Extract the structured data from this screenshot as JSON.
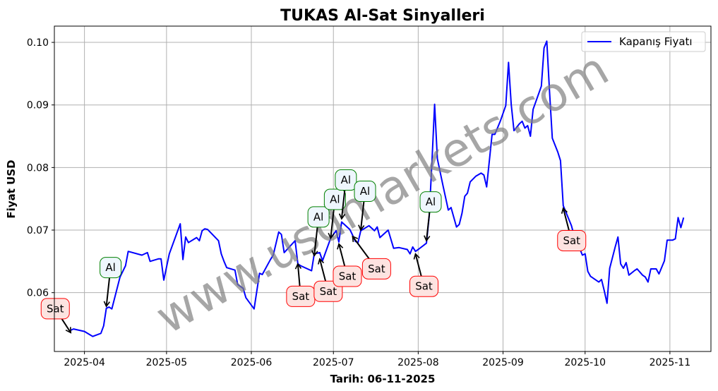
{
  "chart_data": {
    "type": "line",
    "title": "TUKAS Al-Sat Sinyalleri",
    "xlabel": "Tarih: 06-11-2025",
    "ylabel": "Fiyat USD",
    "xlim": [
      "2025-03-21",
      "2025-11-16"
    ],
    "ylim": [
      0.0506,
      0.1026
    ],
    "x_ticks": [
      "2025-04",
      "2025-05",
      "2025-06",
      "2025-07",
      "2025-08",
      "2025-09",
      "2025-10",
      "2025-11"
    ],
    "x_tick_dates": [
      "2025-04-01",
      "2025-05-01",
      "2025-06-01",
      "2025-07-01",
      "2025-08-01",
      "2025-09-01",
      "2025-10-01",
      "2025-11-01"
    ],
    "y_ticks": [
      "0.06",
      "0.07",
      "0.08",
      "0.09",
      "0.10"
    ],
    "grid": true,
    "legend_position": "top-right",
    "watermark": "www.usdmarkets.com",
    "colors": {
      "line": "#0000ff",
      "buy_border": "#008000",
      "buy_fill": "#eef6fd",
      "sell_border": "#ff0000",
      "sell_fill": "#fde3e0",
      "grid": "#b0b0b0",
      "watermark": "#808080"
    },
    "series": [
      {
        "name": "Kapanış Fiyatı",
        "x": [
          "2025-03-27",
          "2025-03-28",
          "2025-04-01",
          "2025-04-04",
          "2025-04-07",
          "2025-04-08",
          "2025-04-09",
          "2025-04-10",
          "2025-04-11",
          "2025-04-14",
          "2025-04-16",
          "2025-04-17",
          "2025-04-22",
          "2025-04-24",
          "2025-04-25",
          "2025-04-28",
          "2025-04-29",
          "2025-04-30",
          "2025-05-02",
          "2025-05-06",
          "2025-05-07",
          "2025-05-08",
          "2025-05-09",
          "2025-05-12",
          "2025-05-13",
          "2025-05-14",
          "2025-05-15",
          "2025-05-16",
          "2025-05-20",
          "2025-05-21",
          "2025-05-22",
          "2025-05-23",
          "2025-05-26",
          "2025-05-27",
          "2025-05-29",
          "2025-05-30",
          "2025-06-02",
          "2025-06-04",
          "2025-06-05",
          "2025-06-08",
          "2025-06-09",
          "2025-06-11",
          "2025-06-12",
          "2025-06-13",
          "2025-06-17",
          "2025-06-18",
          "2025-06-19",
          "2025-06-23",
          "2025-06-24",
          "2025-06-26",
          "2025-06-27",
          "2025-06-30",
          "2025-07-02",
          "2025-07-03",
          "2025-07-04",
          "2025-07-07",
          "2025-07-08",
          "2025-07-09",
          "2025-07-10",
          "2025-07-11",
          "2025-07-14",
          "2025-07-16",
          "2025-07-17",
          "2025-07-18",
          "2025-07-21",
          "2025-07-23",
          "2025-07-25",
          "2025-07-28",
          "2025-07-29",
          "2025-07-30",
          "2025-07-31",
          "2025-08-01",
          "2025-08-04",
          "2025-08-05",
          "2025-08-06",
          "2025-08-07",
          "2025-08-08",
          "2025-08-10",
          "2025-08-12",
          "2025-08-13",
          "2025-08-15",
          "2025-08-16",
          "2025-08-17",
          "2025-08-18",
          "2025-08-19",
          "2025-08-20",
          "2025-08-22",
          "2025-08-24",
          "2025-08-25",
          "2025-08-26",
          "2025-08-28",
          "2025-08-29",
          "2025-08-31",
          "2025-09-02",
          "2025-09-03",
          "2025-09-04",
          "2025-09-05",
          "2025-09-07",
          "2025-09-08",
          "2025-09-09",
          "2025-09-10",
          "2025-09-11",
          "2025-09-12",
          "2025-09-15",
          "2025-09-16",
          "2025-09-17",
          "2025-09-18",
          "2025-09-19",
          "2025-09-21",
          "2025-09-22",
          "2025-09-23",
          "2025-09-25",
          "2025-09-26",
          "2025-09-28",
          "2025-09-29",
          "2025-09-30",
          "2025-10-01",
          "2025-10-02",
          "2025-10-03",
          "2025-10-06",
          "2025-10-07",
          "2025-10-08",
          "2025-10-09",
          "2025-10-10",
          "2025-10-12",
          "2025-10-13",
          "2025-10-14",
          "2025-10-15",
          "2025-10-16",
          "2025-10-17",
          "2025-10-19",
          "2025-10-20",
          "2025-10-22",
          "2025-10-23",
          "2025-10-24",
          "2025-10-25",
          "2025-10-26",
          "2025-10-27",
          "2025-10-28",
          "2025-10-30",
          "2025-10-31",
          "2025-11-02",
          "2025-11-03",
          "2025-11-04",
          "2025-11-05",
          "2025-11-06"
        ],
        "values": [
          0.054,
          0.0542,
          0.0538,
          0.053,
          0.0535,
          0.0547,
          0.0575,
          0.0577,
          0.0574,
          0.0625,
          0.0643,
          0.0666,
          0.066,
          0.0664,
          0.065,
          0.0654,
          0.0654,
          0.062,
          0.0662,
          0.071,
          0.0653,
          0.0689,
          0.068,
          0.0688,
          0.0683,
          0.0699,
          0.0702,
          0.0701,
          0.0683,
          0.0662,
          0.065,
          0.064,
          0.0636,
          0.0613,
          0.0607,
          0.0592,
          0.0574,
          0.0631,
          0.0629,
          0.0653,
          0.066,
          0.0697,
          0.0693,
          0.0664,
          0.0683,
          0.0646,
          0.0643,
          0.0635,
          0.0662,
          0.0664,
          0.0651,
          0.0687,
          0.0699,
          0.0681,
          0.0713,
          0.0701,
          0.0692,
          0.0682,
          0.068,
          0.0699,
          0.0707,
          0.0699,
          0.0705,
          0.0688,
          0.07,
          0.0671,
          0.0672,
          0.0669,
          0.0662,
          0.0673,
          0.0666,
          0.0669,
          0.0679,
          0.0722,
          0.0808,
          0.0901,
          0.0814,
          0.0772,
          0.0732,
          0.0736,
          0.0705,
          0.0709,
          0.0727,
          0.0754,
          0.0759,
          0.0777,
          0.0786,
          0.0791,
          0.0788,
          0.0769,
          0.0853,
          0.0853,
          0.0874,
          0.0899,
          0.0968,
          0.0901,
          0.0859,
          0.087,
          0.0874,
          0.0863,
          0.0867,
          0.085,
          0.0893,
          0.093,
          0.0991,
          0.1002,
          0.0921,
          0.0847,
          0.0825,
          0.0811,
          0.0739,
          0.0718,
          0.0707,
          0.0675,
          0.0671,
          0.066,
          0.0662,
          0.0634,
          0.0626,
          0.0617,
          0.0621,
          0.0603,
          0.0583,
          0.0639,
          0.0673,
          0.0689,
          0.0646,
          0.0639,
          0.0648,
          0.0628,
          0.0635,
          0.0638,
          0.0628,
          0.0625,
          0.0617,
          0.0638,
          0.0638,
          0.0638,
          0.063,
          0.0651,
          0.0684,
          0.0684,
          0.0686,
          0.072,
          0.0704,
          0.072
        ]
      }
    ],
    "annotations": [
      {
        "label": "Sat",
        "type": "sell",
        "x": "2025-03-27",
        "y": 0.0536
      },
      {
        "label": "Al",
        "type": "buy",
        "x": "2025-04-09",
        "y": 0.0578
      },
      {
        "label": "Sat",
        "type": "sell",
        "x": "2025-06-18",
        "y": 0.0646
      },
      {
        "label": "Al",
        "type": "buy",
        "x": "2025-06-24",
        "y": 0.0659
      },
      {
        "label": "Sat",
        "type": "sell",
        "x": "2025-06-26",
        "y": 0.0654
      },
      {
        "label": "Al",
        "type": "buy",
        "x": "2025-06-30",
        "y": 0.0687
      },
      {
        "label": "Sat",
        "type": "sell",
        "x": "2025-07-03",
        "y": 0.0678
      },
      {
        "label": "Al",
        "type": "buy",
        "x": "2025-07-04",
        "y": 0.0718
      },
      {
        "label": "Sat",
        "type": "sell",
        "x": "2025-07-08",
        "y": 0.069
      },
      {
        "label": "Al",
        "type": "buy",
        "x": "2025-07-11",
        "y": 0.07
      },
      {
        "label": "Sat",
        "type": "sell",
        "x": "2025-07-31",
        "y": 0.0662
      },
      {
        "label": "Al",
        "type": "buy",
        "x": "2025-08-04",
        "y": 0.0683
      },
      {
        "label": "Sat",
        "type": "sell",
        "x": "2025-09-23",
        "y": 0.0735
      }
    ]
  }
}
